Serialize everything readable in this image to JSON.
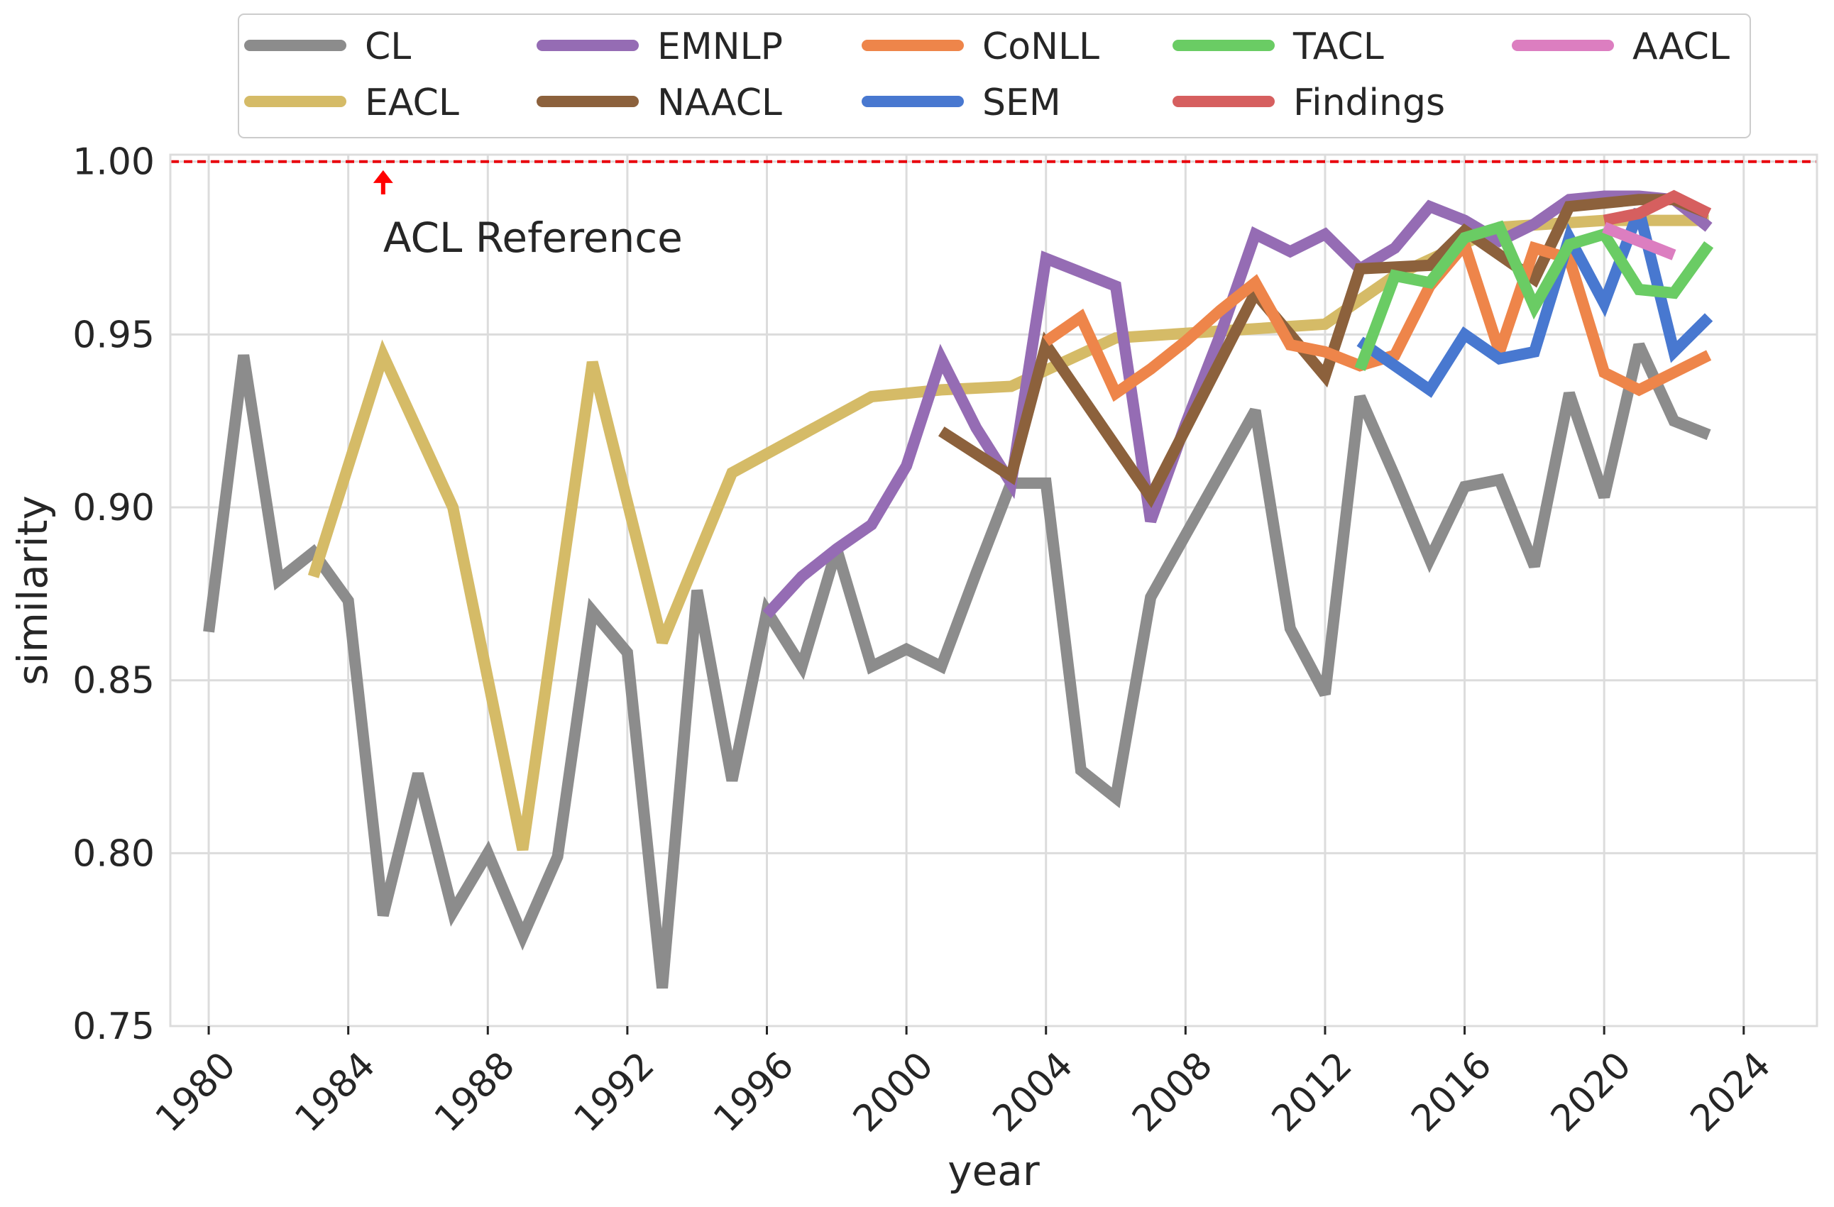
{
  "chart_data": {
    "type": "line",
    "title": "",
    "xlabel": "year",
    "ylabel": "similarity",
    "xlim": [
      1978.9,
      2026.1
    ],
    "ylim": [
      0.75,
      1.002
    ],
    "xticks": [
      1980,
      1984,
      1988,
      1992,
      1996,
      2000,
      2004,
      2008,
      2012,
      2016,
      2020,
      2024
    ],
    "xtick_labels": [
      "1980",
      "1984",
      "1988",
      "1992",
      "1996",
      "2000",
      "2004",
      "2008",
      "2012",
      "2016",
      "2020",
      "2024"
    ],
    "yticks": [
      0.75,
      0.8,
      0.85,
      0.9,
      0.95,
      1.0
    ],
    "ytick_labels": [
      "0.75",
      "0.80",
      "0.85",
      "0.90",
      "0.95",
      "1.00"
    ],
    "grid": true,
    "legend_position": "top",
    "reference_line": {
      "y": 1.0,
      "color": "#e8000b",
      "style": "dashed"
    },
    "annotation": {
      "text": "ACL Reference",
      "x": 1985,
      "y": 0.978,
      "arrow_to_y": 0.9975
    },
    "series": [
      {
        "name": "CL",
        "color": "#8c8c8c",
        "x": [
          1980,
          1981,
          1982,
          1983,
          1984,
          1985,
          1986,
          1987,
          1988,
          1989,
          1990,
          1991,
          1992,
          1993,
          1994,
          1995,
          1996,
          1997,
          1998,
          1999,
          2000,
          2001,
          2002,
          2003,
          2004,
          2005,
          2006,
          2007,
          2008,
          2009,
          2010,
          2011,
          2012,
          2013,
          2014,
          2015,
          2016,
          2017,
          2018,
          2019,
          2020,
          2021,
          2022,
          2023
        ],
        "y": [
          0.864,
          0.944,
          0.879,
          0.887,
          0.873,
          0.782,
          0.823,
          0.783,
          0.8,
          0.776,
          0.799,
          0.87,
          0.858,
          0.761,
          0.876,
          0.821,
          0.87,
          0.854,
          0.888,
          0.854,
          0.859,
          0.854,
          0.881,
          0.907,
          0.907,
          0.824,
          0.816,
          0.874,
          0.892,
          0.91,
          0.928,
          0.865,
          0.846,
          0.932,
          0.909,
          0.885,
          0.906,
          0.908,
          0.883,
          0.933,
          0.903,
          0.947,
          0.925,
          0.921
        ]
      },
      {
        "name": "EACL",
        "color": "#d5bb67",
        "x": [
          1983,
          1985,
          1987,
          1989,
          1991,
          1993,
          1995,
          1997,
          1999,
          2001,
          2003,
          2006,
          2009,
          2012,
          2014,
          2017,
          2020,
          2021,
          2023
        ],
        "y": [
          0.88,
          0.944,
          0.9,
          0.801,
          0.942,
          0.861,
          0.91,
          0.921,
          0.932,
          0.934,
          0.935,
          0.949,
          0.951,
          0.953,
          0.967,
          0.981,
          0.983,
          0.983,
          0.983
        ]
      },
      {
        "name": "EMNLP",
        "color": "#956cb4",
        "x": [
          1996,
          1997,
          1998,
          1999,
          2000,
          2001,
          2002,
          2003,
          2004,
          2005,
          2006,
          2007,
          2008,
          2009,
          2010,
          2011,
          2012,
          2013,
          2014,
          2015,
          2016,
          2017,
          2018,
          2019,
          2020,
          2021,
          2022,
          2023
        ],
        "y": [
          0.869,
          0.88,
          0.888,
          0.895,
          0.912,
          0.943,
          0.923,
          0.907,
          0.972,
          0.968,
          0.964,
          0.896,
          0.924,
          0.95,
          0.979,
          0.974,
          0.979,
          0.969,
          0.975,
          0.987,
          0.983,
          0.977,
          0.982,
          0.989,
          0.99,
          0.99,
          0.989,
          0.981
        ]
      },
      {
        "name": "NAACL",
        "color": "#8c613c",
        "x": [
          2001,
          2003,
          2004,
          2007,
          2010,
          2012,
          2013,
          2015,
          2016,
          2018,
          2019,
          2021,
          2022,
          2023
        ],
        "y": [
          0.922,
          0.909,
          0.947,
          0.903,
          0.962,
          0.938,
          0.969,
          0.97,
          0.98,
          0.966,
          0.987,
          0.989,
          0.989,
          0.985
        ]
      },
      {
        "name": "CoNLL",
        "color": "#ee854a",
        "x": [
          2004,
          2005,
          2006,
          2007,
          2008,
          2009,
          2010,
          2011,
          2012,
          2013,
          2014,
          2015,
          2016,
          2017,
          2018,
          2019,
          2020,
          2021,
          2022,
          2023
        ],
        "y": [
          0.948,
          0.955,
          0.933,
          0.94,
          0.948,
          0.957,
          0.965,
          0.947,
          0.945,
          0.941,
          0.944,
          0.964,
          0.976,
          0.945,
          0.975,
          0.972,
          0.939,
          0.934,
          0.939,
          0.944
        ]
      },
      {
        "name": "SEM",
        "color": "#4878d0",
        "x": [
          2013,
          2014,
          2015,
          2016,
          2017,
          2018,
          2019,
          2020,
          2021,
          2022,
          2023
        ],
        "y": [
          0.948,
          0.941,
          0.934,
          0.95,
          0.943,
          0.945,
          0.978,
          0.959,
          0.986,
          0.945,
          0.955
        ]
      },
      {
        "name": "TACL",
        "color": "#6acc64",
        "x": [
          2013,
          2014,
          2015,
          2016,
          2017,
          2018,
          2019,
          2020,
          2021,
          2022,
          2023
        ],
        "y": [
          0.94,
          0.967,
          0.965,
          0.978,
          0.981,
          0.958,
          0.976,
          0.979,
          0.963,
          0.962,
          0.976
        ]
      },
      {
        "name": "Findings",
        "color": "#d65f5f",
        "x": [
          2020,
          2021,
          2022,
          2023
        ],
        "y": [
          0.983,
          0.985,
          0.99,
          0.985
        ]
      },
      {
        "name": "AACL",
        "color": "#dc7ec0",
        "x": [
          2020,
          2022
        ],
        "y": [
          0.981,
          0.973
        ]
      }
    ]
  }
}
